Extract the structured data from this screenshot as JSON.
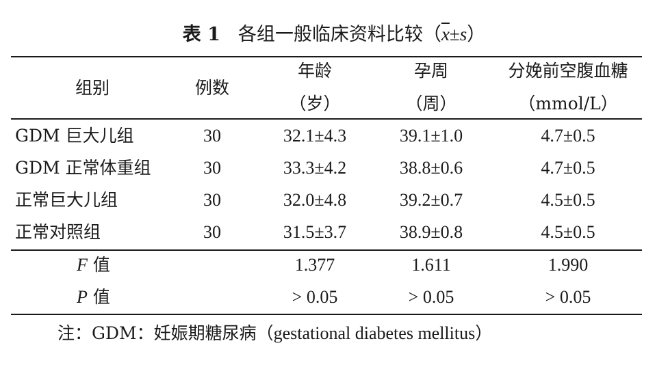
{
  "caption": {
    "label": "表 1",
    "title": "各组一般临床资料比较（",
    "stat_mean": "x",
    "stat_pm": "±",
    "stat_s": "s",
    "close": "）"
  },
  "headers": {
    "group": "组别",
    "count": "例数",
    "age": "年龄",
    "age_unit": "（岁）",
    "gest": "孕周",
    "gest_unit": "（周）",
    "glucose": "分娩前空腹血糖",
    "glucose_unit": "（mmol/L）"
  },
  "rows": [
    {
      "group": "GDM 巨大儿组",
      "count": "30",
      "age": "32.1±4.3",
      "gest": "39.1±1.0",
      "glucose": "4.7±0.5"
    },
    {
      "group": "GDM 正常体重组",
      "count": "30",
      "age": "33.3±4.2",
      "gest": "38.8±0.6",
      "glucose": "4.7±0.5"
    },
    {
      "group": "正常巨大儿组",
      "count": "30",
      "age": "32.0±4.8",
      "gest": "39.2±0.7",
      "glucose": "4.5±0.5"
    },
    {
      "group": "正常对照组",
      "count": "30",
      "age": "31.5±3.7",
      "gest": "38.9±0.8",
      "glucose": "4.5±0.5"
    }
  ],
  "stats": {
    "f_symbol": "F",
    "f_suffix": " 值",
    "f_age": "1.377",
    "f_gest": "1.611",
    "f_glucose": "1.990",
    "p_symbol": "P",
    "p_suffix": " 值",
    "p_age": "> 0.05",
    "p_gest": "> 0.05",
    "p_glucose": "> 0.05"
  },
  "note": {
    "prefix": "注：GDM：妊娠期糖尿病（",
    "english": "gestational diabetes mellitus",
    "suffix": "）"
  }
}
